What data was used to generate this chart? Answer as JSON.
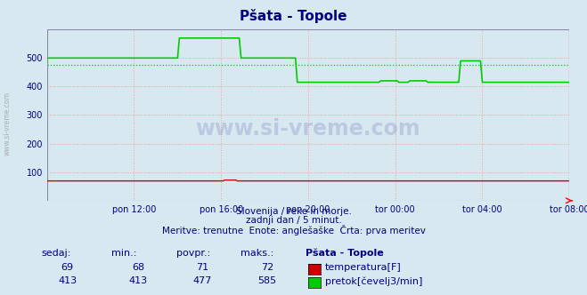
{
  "title": "Pšata - Topole",
  "bg_color": "#d8e8f0",
  "grid_color": "#ff9999",
  "x_tick_labels": [
    "pon 12:00",
    "pon 16:00",
    "pon 20:00",
    "tor 00:00",
    "tor 04:00",
    "tor 08:00"
  ],
  "x_tick_positions": [
    48,
    96,
    144,
    192,
    240,
    288
  ],
  "total_points": 288,
  "ylim": [
    0,
    600
  ],
  "yticks": [
    100,
    200,
    300,
    400,
    500
  ],
  "temp_color": "#cc0000",
  "flow_color": "#00cc00",
  "temp_value": 69,
  "temp_min": 68,
  "temp_avg": 71,
  "temp_max": 72,
  "flow_value": 413,
  "flow_min": 413,
  "flow_avg": 477,
  "flow_max": 585,
  "subtitle1": "Slovenija / reke in morje.",
  "subtitle2": "zadnji dan / 5 minut.",
  "subtitle3": "Meritve: trenutne  Enote: anglešaške  Črta: prva meritev",
  "table_headers": [
    "sedaj:",
    "min.:",
    "povpr.:",
    "maks.:",
    "Pšata - Topole"
  ],
  "legend_temp": "temperatura[F]",
  "legend_flow": "pretok[čevelj3/min]",
  "title_color": "#000080",
  "label_color": "#000080",
  "table_color": "#000080",
  "watermark": "www.si-vreme.com",
  "ylabel_text": "www.si-vreme.com"
}
